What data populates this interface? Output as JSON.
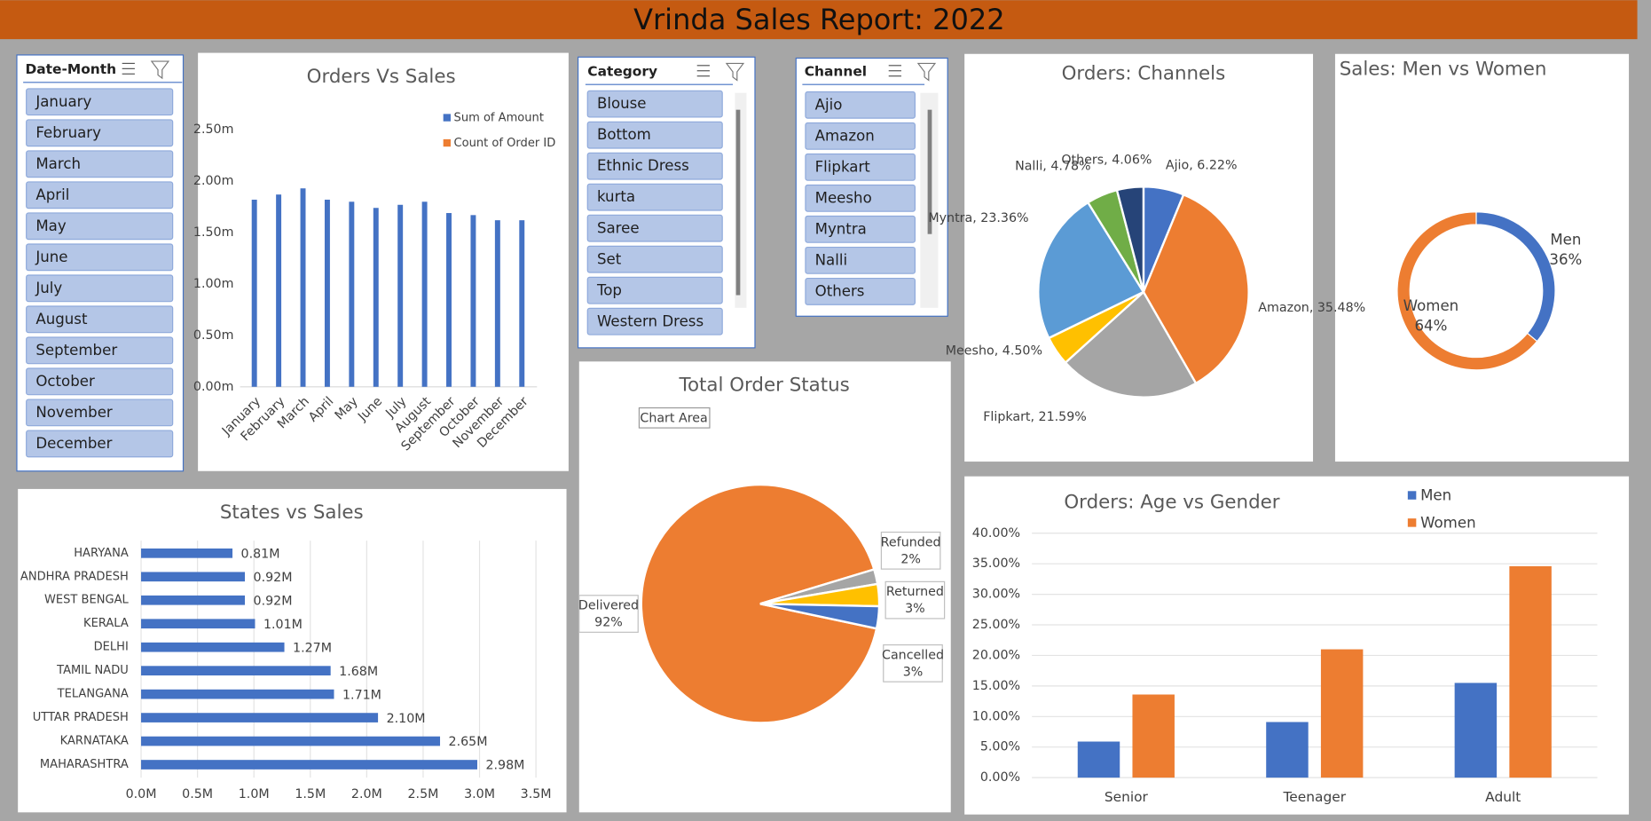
{
  "title": "Vrinda Sales Report: 2022",
  "tooltip": "Chart Area",
  "slicers": [
    {
      "title": "Date-Month",
      "items": [
        "January",
        "February",
        "March",
        "April",
        "May",
        "June",
        "July",
        "August",
        "September",
        "October",
        "November",
        "December"
      ]
    },
    {
      "title": "Category",
      "items": [
        "Blouse",
        "Bottom",
        "Ethnic Dress",
        "kurta",
        "Saree",
        "Set",
        "Top",
        "Western Dress"
      ]
    },
    {
      "title": "Channel",
      "items": [
        "Ajio",
        "Amazon",
        "Flipkart",
        "Meesho",
        "Myntra",
        "Nalli",
        "Others"
      ]
    }
  ],
  "chart_data": [
    {
      "type": "bar",
      "title": "Orders Vs Sales",
      "categories": [
        "January",
        "February",
        "March",
        "April",
        "May",
        "June",
        "July",
        "August",
        "September",
        "October",
        "November",
        "December"
      ],
      "series": [
        {
          "name": "Sum of Amount",
          "color": "#4472c4",
          "values": [
            1.82,
            1.87,
            1.93,
            1.82,
            1.8,
            1.74,
            1.77,
            1.8,
            1.69,
            1.67,
            1.62,
            1.62
          ]
        },
        {
          "name": "Count of Order ID",
          "color": "#ed7d31",
          "values": [
            null,
            null,
            null,
            null,
            null,
            null,
            null,
            null,
            null,
            null,
            null,
            null
          ]
        }
      ],
      "ylim": [
        0,
        2.5
      ],
      "yticks": [
        {
          "value": 0,
          "label": "0.00m"
        },
        {
          "value": 0.5,
          "label": "0.50m"
        },
        {
          "value": 1,
          "label": "1.00m"
        },
        {
          "value": 1.5,
          "label": "1.50m"
        },
        {
          "value": 2,
          "label": "2.00m"
        },
        {
          "value": 2.5,
          "label": "2.50m"
        }
      ],
      "grid": false,
      "legend": "top-right"
    },
    {
      "type": "hbar",
      "title": "States vs Sales",
      "categories": [
        "HARYANA",
        "ANDHRA PRADESH",
        "WEST BENGAL",
        "KERALA",
        "DELHI",
        "TAMIL NADU",
        "TELANGANA",
        "UTTAR PRADESH",
        "KARNATAKA",
        "MAHARASHTRA"
      ],
      "values": [
        0.81,
        0.92,
        0.92,
        1.01,
        1.27,
        1.68,
        1.71,
        2.1,
        2.65,
        2.98
      ],
      "value_labels": [
        "0.81M",
        "0.92M",
        "0.92M",
        "1.01M",
        "1.27M",
        "1.68M",
        "1.71M",
        "2.10M",
        "2.65M",
        "2.98M"
      ],
      "color": "#4472c4",
      "xlim": [
        0,
        3.5
      ],
      "xticks": [
        {
          "value": 0,
          "label": "0.0M"
        },
        {
          "value": 0.5,
          "label": "0.5M"
        },
        {
          "value": 1,
          "label": "1.0M"
        },
        {
          "value": 1.5,
          "label": "1.5M"
        },
        {
          "value": 2,
          "label": "2.0M"
        },
        {
          "value": 2.5,
          "label": "2.5M"
        },
        {
          "value": 3,
          "label": "3.0M"
        },
        {
          "value": 3.5,
          "label": "3.5M"
        }
      ],
      "grid": true
    },
    {
      "type": "pie",
      "title": "Total Order Status",
      "categories": [
        "Delivered",
        "Refunded",
        "Returned",
        "Cancelled"
      ],
      "values": [
        92,
        2,
        3,
        3
      ],
      "value_labels": [
        "92%",
        "2%",
        "3%",
        "3%"
      ],
      "colors": [
        "#ed7d31",
        "#a5a5a5",
        "#ffc000",
        "#4472c4"
      ]
    },
    {
      "type": "pie",
      "title": "Orders: Channels",
      "categories": [
        "Ajio",
        "Amazon",
        "Flipkart",
        "Meesho",
        "Myntra",
        "Nalli",
        "Others"
      ],
      "values": [
        6.22,
        35.48,
        21.59,
        4.5,
        23.36,
        4.78,
        4.06
      ],
      "value_labels": [
        "Ajio, 6.22%",
        "Amazon, 35.48%",
        "Flipkart, 21.59%",
        "Meesho, 4.50%",
        "Myntra, 23.36%",
        "Nalli, 4.78%",
        "Others, 4.06%"
      ],
      "colors": [
        "#4472c4",
        "#ed7d31",
        "#a5a5a5",
        "#ffc000",
        "#5b9bd5",
        "#70ad47",
        "#264478"
      ]
    },
    {
      "type": "donut",
      "title": "Sales: Men vs Women",
      "categories": [
        "Men",
        "Women"
      ],
      "values": [
        36,
        64
      ],
      "value_labels": [
        "36%",
        "64%"
      ],
      "colors": [
        "#4472c4",
        "#ed7d31"
      ]
    },
    {
      "type": "groupbar",
      "title": "Orders: Age vs Gender",
      "categories": [
        "Senior",
        "Teenager",
        "Adult"
      ],
      "series": [
        {
          "name": "Men",
          "color": "#4472c4",
          "values": [
            5.9,
            9.1,
            15.5
          ]
        },
        {
          "name": "Women",
          "color": "#ed7d31",
          "values": [
            13.6,
            21.0,
            34.6
          ]
        }
      ],
      "ylim": [
        0,
        40
      ],
      "yticks": [
        {
          "value": 0,
          "label": "0.00%"
        },
        {
          "value": 5,
          "label": "5.00%"
        },
        {
          "value": 10,
          "label": "10.00%"
        },
        {
          "value": 15,
          "label": "15.00%"
        },
        {
          "value": 20,
          "label": "20.00%"
        },
        {
          "value": 25,
          "label": "25.00%"
        },
        {
          "value": 30,
          "label": "30.00%"
        },
        {
          "value": 35,
          "label": "35.00%"
        },
        {
          "value": 40,
          "label": "40.00%"
        }
      ],
      "grid": true,
      "legend": "top"
    }
  ]
}
